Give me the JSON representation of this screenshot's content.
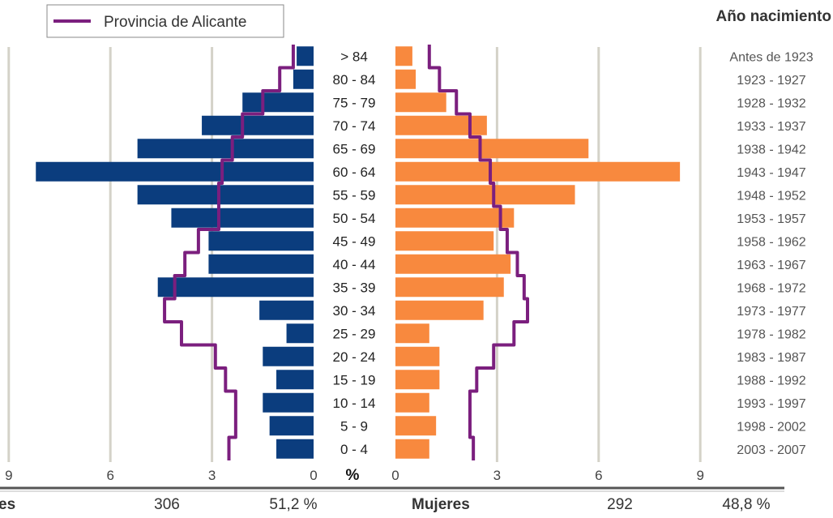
{
  "chart_data": {
    "type": "bar",
    "orientation": "horizontal-population-pyramid",
    "legend": {
      "label": "Provincia de Alicante",
      "color": "#7b1f7e",
      "placement": "top-left"
    },
    "year_header": "Año nacimiento",
    "unit_label": "%",
    "grid": true,
    "xlim": [
      0,
      9
    ],
    "left_ticks": [
      "9",
      "6",
      "3",
      "0"
    ],
    "right_ticks": [
      "0",
      "3",
      "6",
      "9"
    ],
    "categories": [
      "0 - 4",
      "5 - 9",
      "10 - 14",
      "15 - 19",
      "20 - 24",
      "25 - 29",
      "30 - 34",
      "35 - 39",
      "40 - 44",
      "45 - 49",
      "50 - 54",
      "55 - 59",
      "60 - 64",
      "65 - 69",
      "70 - 74",
      "75 - 79",
      "80 - 84",
      "> 84"
    ],
    "birth_years": [
      "2003 - 2007",
      "1998 - 2002",
      "1993 - 1997",
      "1988 - 1992",
      "1983 - 1987",
      "1978 - 1982",
      "1973 - 1977",
      "1968 - 1972",
      "1963 - 1967",
      "1958 - 1962",
      "1953 - 1957",
      "1948 - 1952",
      "1943 - 1947",
      "1938 - 1942",
      "1933 - 1937",
      "1928 - 1932",
      "1923 - 1927",
      "Antes de 1923"
    ],
    "series": [
      {
        "side": "left",
        "color": "#0b3d7e",
        "values": [
          1.1,
          1.3,
          1.5,
          1.1,
          1.5,
          0.8,
          1.6,
          4.6,
          3.1,
          3.1,
          4.2,
          5.2,
          8.2,
          5.2,
          3.3,
          2.1,
          0.6,
          0.5
        ]
      },
      {
        "side": "right",
        "color": "#f8893e",
        "values": [
          1.0,
          1.2,
          1.0,
          1.3,
          1.3,
          1.0,
          2.6,
          3.2,
          3.4,
          2.9,
          3.5,
          5.3,
          8.4,
          5.7,
          2.7,
          1.5,
          0.6,
          0.5
        ]
      },
      {
        "side": "left",
        "name": "Provincia de Alicante",
        "style": "step-line",
        "color": "#7b1f7e",
        "values": [
          2.5,
          2.3,
          2.3,
          2.6,
          2.9,
          3.9,
          4.4,
          4.1,
          3.8,
          3.4,
          2.8,
          2.8,
          2.7,
          2.4,
          2.1,
          1.5,
          1.0,
          0.6
        ]
      },
      {
        "side": "right",
        "style": "step-line",
        "color": "#7b1f7e",
        "values": [
          2.3,
          2.2,
          2.2,
          2.4,
          2.9,
          3.5,
          3.9,
          3.8,
          3.6,
          3.3,
          3.1,
          2.9,
          2.8,
          2.5,
          2.2,
          1.8,
          1.3,
          1.0
        ]
      }
    ]
  },
  "footer": {
    "men_label": "es",
    "men_count": "306",
    "men_pct": "51,2 %",
    "women_label": "Mujeres",
    "women_count": "292",
    "women_pct": "48,8 %"
  }
}
